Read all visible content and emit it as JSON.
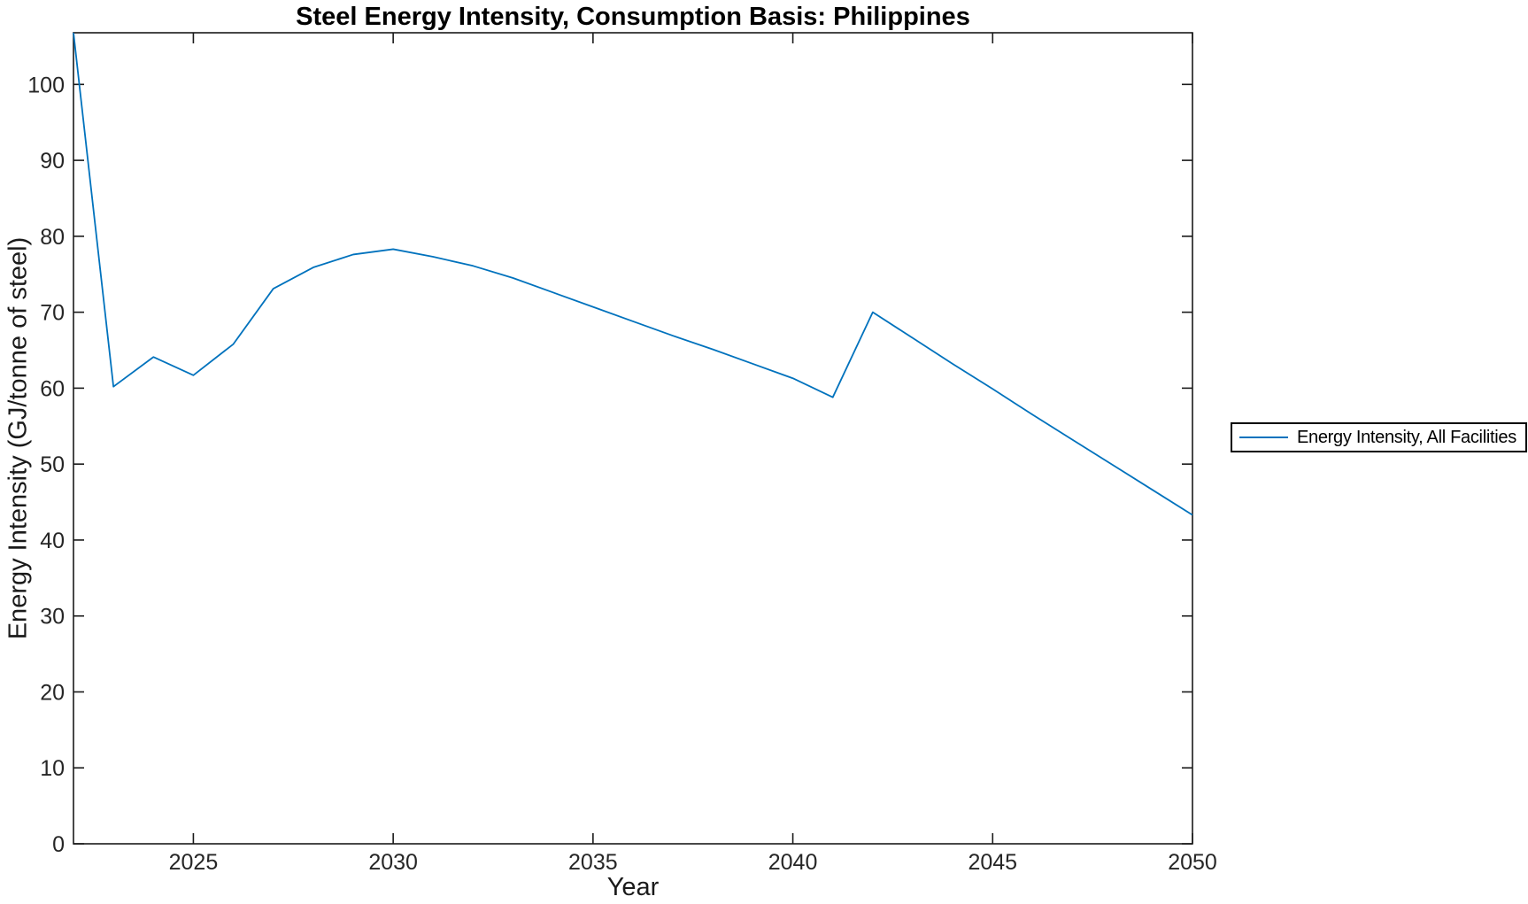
{
  "chart_data": {
    "type": "line",
    "title": "Steel Energy Intensity, Consumption Basis: Philippines",
    "xlabel": "Year",
    "ylabel": "Energy Intensity (GJ/tonne of steel)",
    "x": [
      2022,
      2023,
      2024,
      2025,
      2026,
      2027,
      2028,
      2029,
      2030,
      2031,
      2032,
      2033,
      2034,
      2035,
      2036,
      2037,
      2038,
      2039,
      2040,
      2041,
      2042,
      2043,
      2044,
      2045,
      2046,
      2047,
      2048,
      2049,
      2050
    ],
    "series": [
      {
        "name": "Energy Intensity, All Facilities",
        "color": "#0072BD",
        "values": [
          106.8,
          60.2,
          64.1,
          61.7,
          65.8,
          73.1,
          75.9,
          77.6,
          78.3,
          77.3,
          76.1,
          74.5,
          72.6,
          70.7,
          68.8,
          66.9,
          65.1,
          63.2,
          61.3,
          58.8,
          70.0,
          66.6,
          63.2,
          59.9,
          56.5,
          53.2,
          49.9,
          46.6,
          43.3
        ]
      }
    ],
    "xlim": [
      2022,
      2050
    ],
    "ylim": [
      0,
      106.8
    ],
    "xticks": [
      2025,
      2030,
      2035,
      2040,
      2045,
      2050
    ],
    "yticks": [
      0,
      10,
      20,
      30,
      40,
      50,
      60,
      70,
      80,
      90,
      100
    ],
    "grid": false,
    "legend_position": "right-outside",
    "axis_color": "#1a1a1a",
    "tick_label_color": "#262626"
  }
}
